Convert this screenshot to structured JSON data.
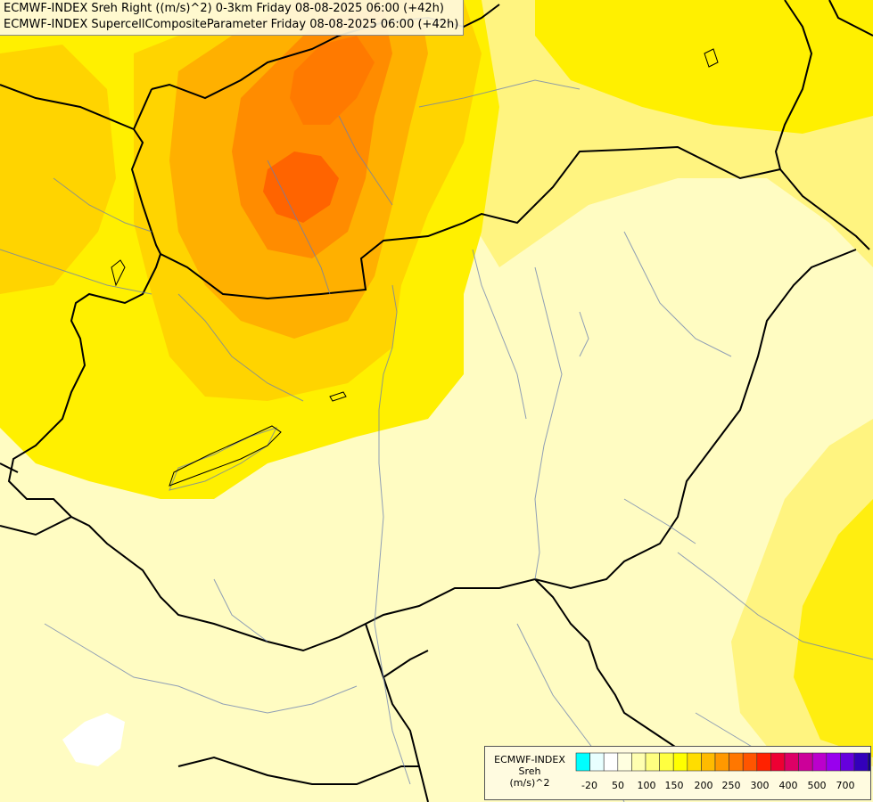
{
  "titles": [
    "ECMWF-INDEX Sreh Right ((m/s)^2) 0-3km Friday 08-08-2025 06:00 (+42h)",
    "ECMWF-INDEX SupercellCompositeParameter Friday 08-08-2025 06:00 (+42h)"
  ],
  "legend": {
    "name_lines": [
      "ECMWF-INDEX",
      "Sreh",
      "(m/s)^2"
    ],
    "colors": [
      "#00ffff",
      "#e8ffff",
      "#ffffff",
      "#ffffe0",
      "#ffffb0",
      "#ffff80",
      "#ffff40",
      "#ffff00",
      "#ffdd00",
      "#ffbb00",
      "#ff9900",
      "#ff7700",
      "#ff5500",
      "#ff2200",
      "#ee0033",
      "#dd0066",
      "#cc0099",
      "#bb00cc",
      "#9900ee",
      "#6600dd",
      "#3300bb",
      "#110088"
    ],
    "ticks": [
      "-20",
      "50",
      "100",
      "150",
      "200",
      "250",
      "300",
      "400",
      "500",
      "700"
    ]
  },
  "palette": {
    "very_light": "#fffcc2",
    "light": "#fff680",
    "yellow": "#ffee00",
    "amber": "#ffd100",
    "orange": "#ffb000",
    "dark_orange": "#ff8c00",
    "red_orange": "#ff6000",
    "white": "#ffffff"
  }
}
